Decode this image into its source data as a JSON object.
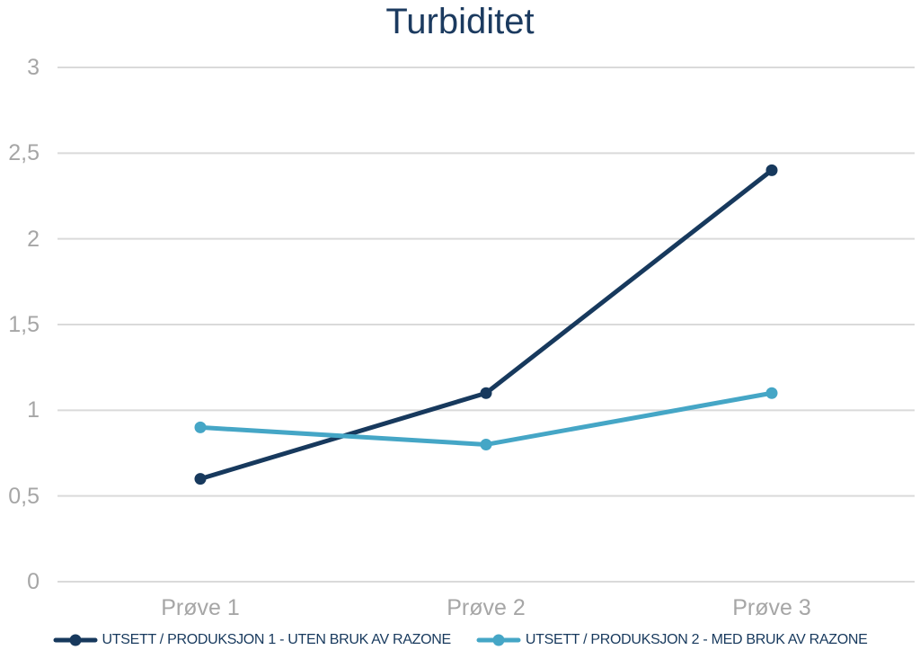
{
  "chart_data": {
    "type": "line",
    "title": "Turbiditet",
    "categories": [
      "Prøve 1",
      "Prøve 2",
      "Prøve 3"
    ],
    "series": [
      {
        "name": "UTSETT / PRODUKSJON 1 - UTEN BRUK AV RAZONE",
        "values": [
          0.6,
          1.1,
          2.4
        ],
        "color": "#17395d"
      },
      {
        "name": "UTSETT / PRODUKSJON 2 - MED BRUK AV RAZONE",
        "values": [
          0.9,
          0.8,
          1.1
        ],
        "color": "#45a6c6"
      }
    ],
    "xlabel": "",
    "ylabel": "",
    "ylim": [
      0,
      3
    ],
    "yticks": [
      {
        "value": 0,
        "label": "0"
      },
      {
        "value": 0.5,
        "label": "0,5"
      },
      {
        "value": 1,
        "label": "1"
      },
      {
        "value": 1.5,
        "label": "1,5"
      },
      {
        "value": 2,
        "label": "2"
      },
      {
        "value": 2.5,
        "label": "2,5"
      },
      {
        "value": 3,
        "label": "3"
      }
    ],
    "grid": true,
    "legend_position": "bottom",
    "colors": {
      "title": "#1b3a5f",
      "axis_labels": "#a6a6a6",
      "gridline": "#dadada",
      "legend_text": "#17395d",
      "background": "#ffffff"
    }
  }
}
